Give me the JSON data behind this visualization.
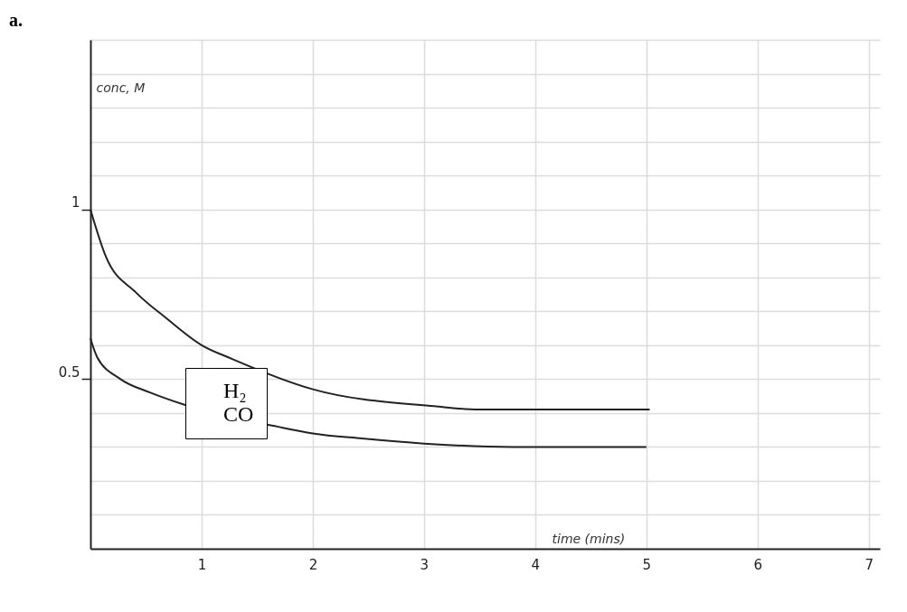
{
  "chart_data": {
    "type": "line",
    "title": "a.",
    "xlabel": "time (mins)",
    "ylabel": "conc,  M",
    "xlim": [
      0,
      7.1
    ],
    "xticks": [
      1,
      2,
      3,
      4,
      5,
      6,
      7
    ],
    "ylim": [
      0,
      1.5
    ],
    "yticks": [
      {
        "value": 0.1,
        "label": null
      },
      {
        "value": 0.2,
        "label": null
      },
      {
        "value": 0.3,
        "label": null
      },
      {
        "value": 0.4,
        "label": null
      },
      0.5,
      {
        "value": 0.6,
        "label": null
      },
      {
        "value": 0.7,
        "label": null
      },
      {
        "value": 0.8,
        "label": null
      },
      {
        "value": 0.9,
        "label": null
      },
      1,
      {
        "value": 1.1,
        "label": null
      },
      {
        "value": 1.2,
        "label": null
      },
      {
        "value": 1.3,
        "label": null
      },
      {
        "value": 1.4,
        "label": null
      },
      {
        "value": 1.5,
        "label": null
      }
    ],
    "grid": true,
    "legend": "left",
    "marker": "none",
    "line_style": "solid",
    "series": [
      {
        "name": "H₂",
        "color": "#222222",
        "x": [
          0,
          0.14,
          0.41,
          0.68,
          1,
          1.27,
          2,
          3.09,
          3.5,
          4,
          5.03
        ],
        "values": [
          1.0,
          0.86,
          0.755,
          0.68,
          0.6,
          0.56,
          0.47,
          0.42,
          0.41,
          0.41,
          0.41
        ]
      },
      {
        "name": "CO",
        "color": "#222222",
        "x": [
          0,
          0.06,
          0.27,
          0.54,
          0.84,
          1.68,
          2,
          2.44,
          3,
          3.8,
          5.0
        ],
        "values": [
          0.62,
          0.565,
          0.5,
          0.46,
          0.425,
          0.36,
          0.34,
          0.325,
          0.31,
          0.3,
          0.3
        ]
      }
    ]
  }
}
